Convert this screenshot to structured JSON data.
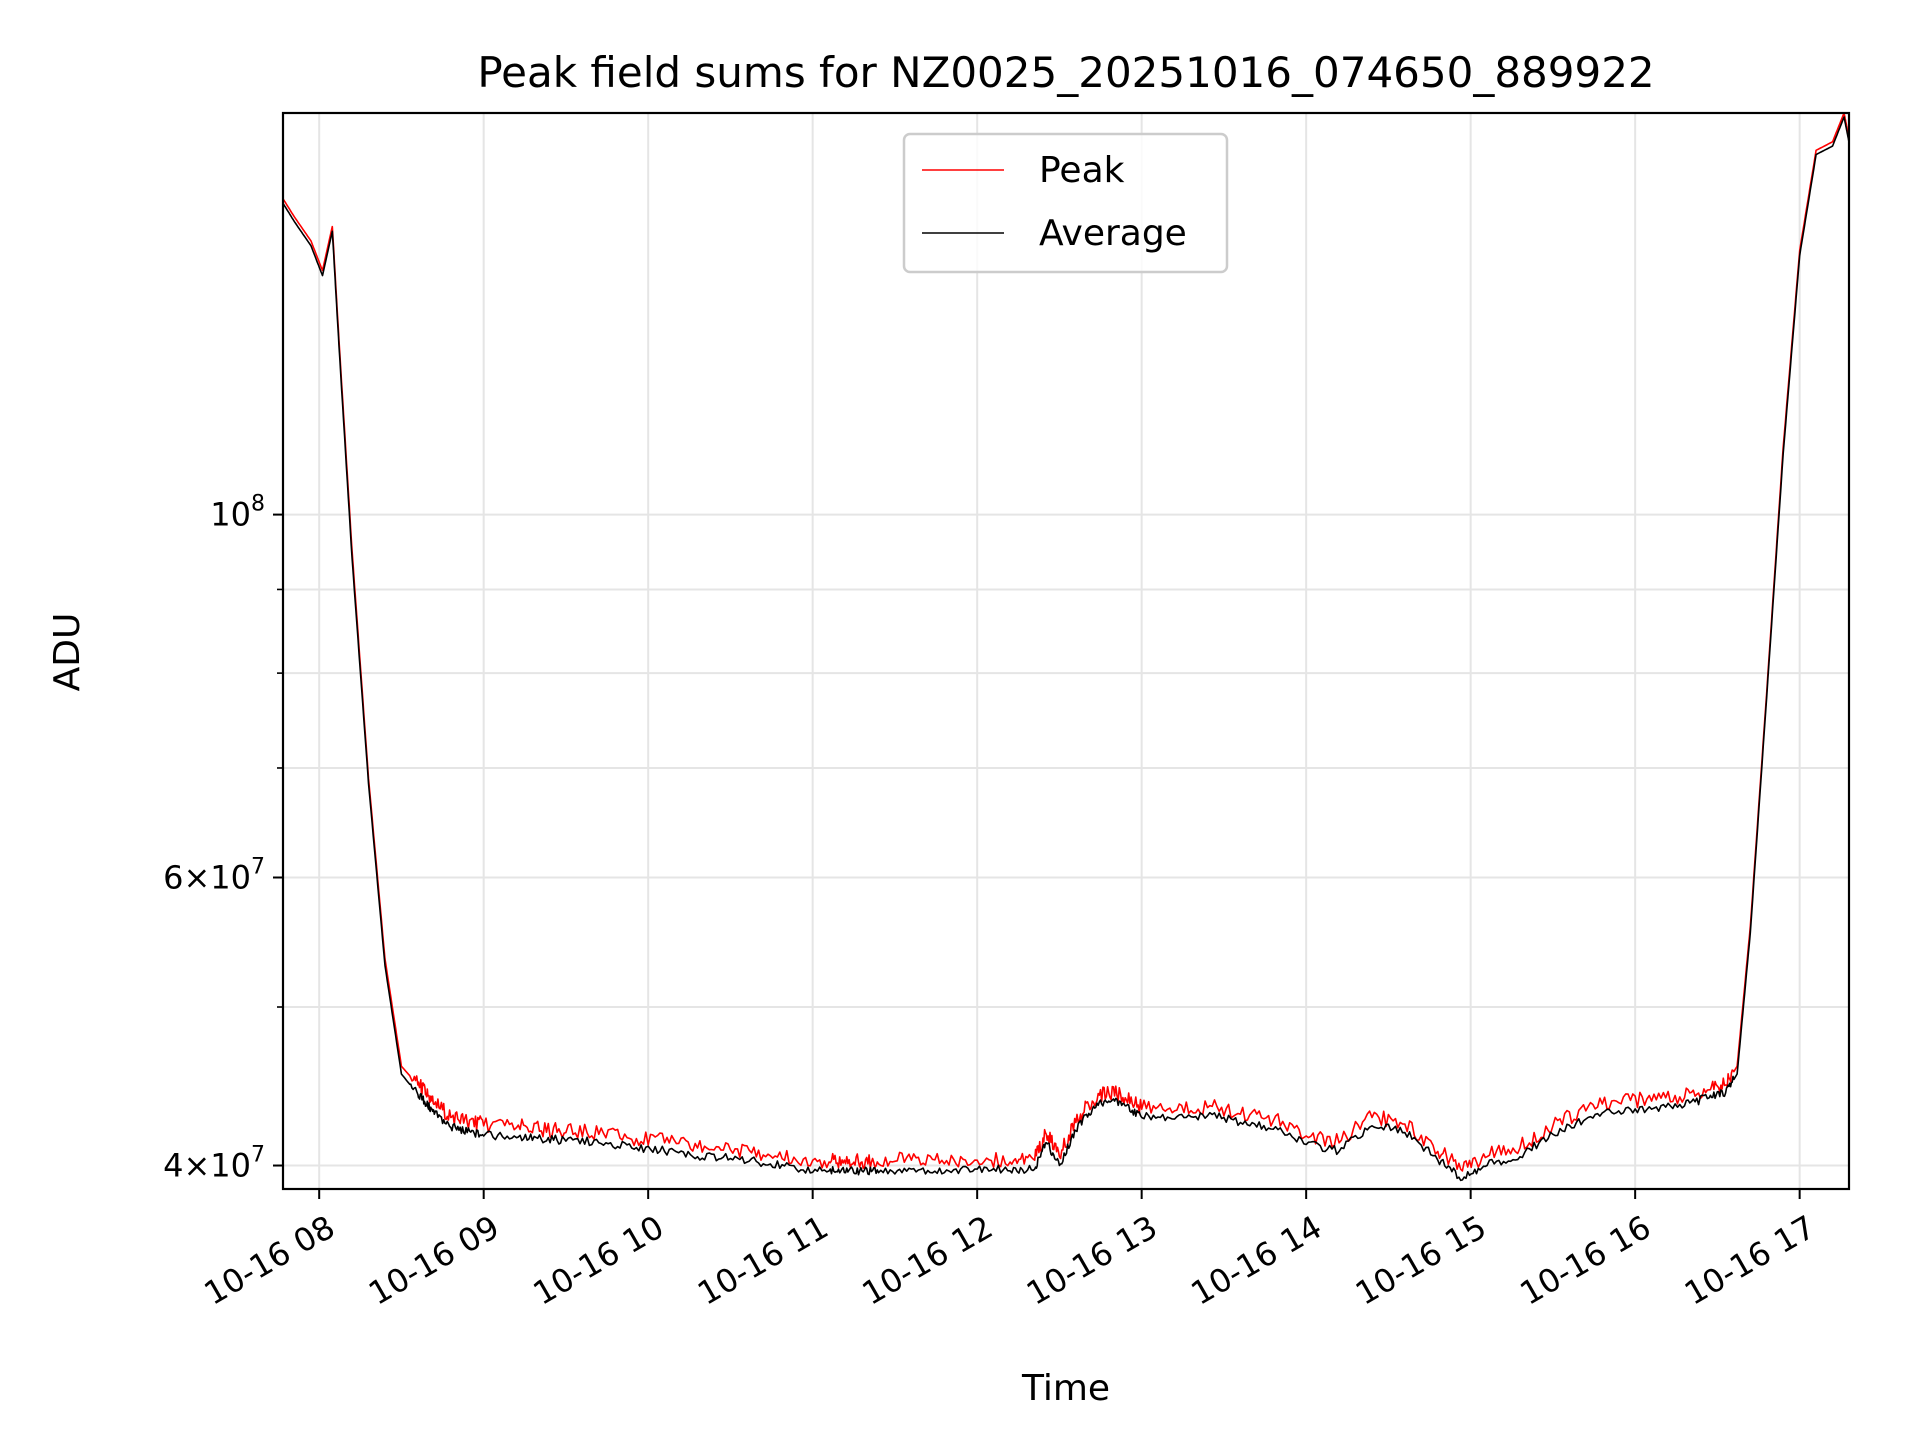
{
  "chart_data": {
    "type": "line",
    "title": "Peak field sums for NZ0025_20251016_074650_889922",
    "xlabel": "Time",
    "ylabel": "ADU",
    "yscale": "log",
    "xlim": [
      7.78,
      17.3
    ],
    "ylim": [
      38700000,
      176000000
    ],
    "grid": true,
    "legend_position": "top-center",
    "x_tick_values": [
      8,
      9,
      10,
      11,
      12,
      13,
      14,
      15,
      16,
      17
    ],
    "x_tick_labels": [
      "10-16 08",
      "10-16 09",
      "10-16 10",
      "10-16 11",
      "10-16 12",
      "10-16 13",
      "10-16 14",
      "10-16 15",
      "10-16 16",
      "10-16 17"
    ],
    "y_major_ticks": [
      {
        "value": 40000000,
        "mantissa": "4",
        "exponent": "7"
      },
      {
        "value": 60000000,
        "mantissa": "6",
        "exponent": "7"
      },
      {
        "value": 100000000,
        "mantissa": "",
        "exponent": "8"
      }
    ],
    "y_minor_ticks": [
      40000000,
      50000000,
      60000000,
      70000000,
      80000000,
      90000000
    ],
    "series": [
      {
        "name": "Peak",
        "color": "#ff0000",
        "x": [
          7.78,
          7.85,
          7.95,
          8.02,
          8.08,
          8.12,
          8.2,
          8.3,
          8.4,
          8.5,
          8.6,
          8.65,
          8.7,
          8.8,
          8.9,
          9.0,
          9.2,
          9.35,
          9.5,
          9.7,
          9.9,
          10.1,
          10.3,
          10.5,
          10.7,
          10.9,
          11.1,
          11.2,
          11.3,
          11.4,
          11.6,
          11.8,
          12.0,
          12.2,
          12.35,
          12.42,
          12.5,
          12.6,
          12.7,
          12.8,
          12.9,
          13.0,
          13.2,
          13.4,
          13.6,
          13.8,
          14.0,
          14.2,
          14.4,
          14.6,
          14.8,
          14.95,
          15.1,
          15.3,
          15.5,
          15.7,
          15.9,
          16.1,
          16.3,
          16.45,
          16.55,
          16.62,
          16.7,
          16.8,
          16.9,
          17.0,
          17.1,
          17.2,
          17.27,
          17.3
        ],
        "values": [
          156000000,
          152000000,
          147000000,
          141000000,
          150000000,
          128000000,
          95000000,
          69000000,
          53500000,
          46000000,
          44800000,
          44200000,
          43600000,
          42800000,
          42500000,
          42300000,
          42200000,
          42000000,
          41900000,
          41800000,
          41500000,
          41300000,
          41000000,
          40900000,
          40600000,
          40300000,
          40200000,
          40100000,
          40200000,
          40100000,
          40300000,
          40100000,
          40300000,
          40200000,
          40300000,
          41800000,
          40500000,
          42500000,
          43800000,
          44300000,
          44000000,
          43300000,
          43200000,
          43400000,
          43000000,
          42600000,
          41700000,
          41300000,
          42800000,
          42400000,
          40800000,
          39700000,
          40500000,
          41000000,
          42300000,
          43200000,
          43700000,
          43800000,
          44000000,
          44500000,
          44800000,
          46000000,
          56000000,
          78000000,
          110000000,
          145000000,
          167000000,
          169000000,
          176000000,
          170000000
        ]
      },
      {
        "name": "Average",
        "color": "#000000",
        "x": [
          7.78,
          7.85,
          7.95,
          8.02,
          8.08,
          8.12,
          8.2,
          8.3,
          8.4,
          8.5,
          8.6,
          8.65,
          8.7,
          8.8,
          8.9,
          9.0,
          9.2,
          9.35,
          9.5,
          9.7,
          9.9,
          10.1,
          10.3,
          10.5,
          10.7,
          10.9,
          11.1,
          11.2,
          11.3,
          11.4,
          11.6,
          11.8,
          12.0,
          12.2,
          12.35,
          12.42,
          12.5,
          12.6,
          12.7,
          12.8,
          12.9,
          13.0,
          13.2,
          13.4,
          13.6,
          13.8,
          14.0,
          14.2,
          14.4,
          14.6,
          14.8,
          14.95,
          15.1,
          15.3,
          15.5,
          15.7,
          15.9,
          16.1,
          16.3,
          16.45,
          16.55,
          16.62,
          16.7,
          16.8,
          16.9,
          17.0,
          17.1,
          17.2,
          17.27,
          17.3
        ],
        "values": [
          155000000,
          151000000,
          146000000,
          140000000,
          149000000,
          127000000,
          94000000,
          68500000,
          53000000,
          45500000,
          44200000,
          43600000,
          43000000,
          42200000,
          41900000,
          41700000,
          41600000,
          41500000,
          41400000,
          41300000,
          41000000,
          40800000,
          40500000,
          40400000,
          40100000,
          39800000,
          39700000,
          39600000,
          39700000,
          39600000,
          39800000,
          39600000,
          39800000,
          39700000,
          39800000,
          41300000,
          40000000,
          42000000,
          43300000,
          43800000,
          43500000,
          42800000,
          42700000,
          42900000,
          42500000,
          42100000,
          41200000,
          40800000,
          42300000,
          41900000,
          40300000,
          39200000,
          40000000,
          40500000,
          41800000,
          42700000,
          43200000,
          43300000,
          43500000,
          44000000,
          44300000,
          45500000,
          55500000,
          77500000,
          109000000,
          144000000,
          166000000,
          168000000,
          175000000,
          169000000
        ]
      }
    ]
  }
}
